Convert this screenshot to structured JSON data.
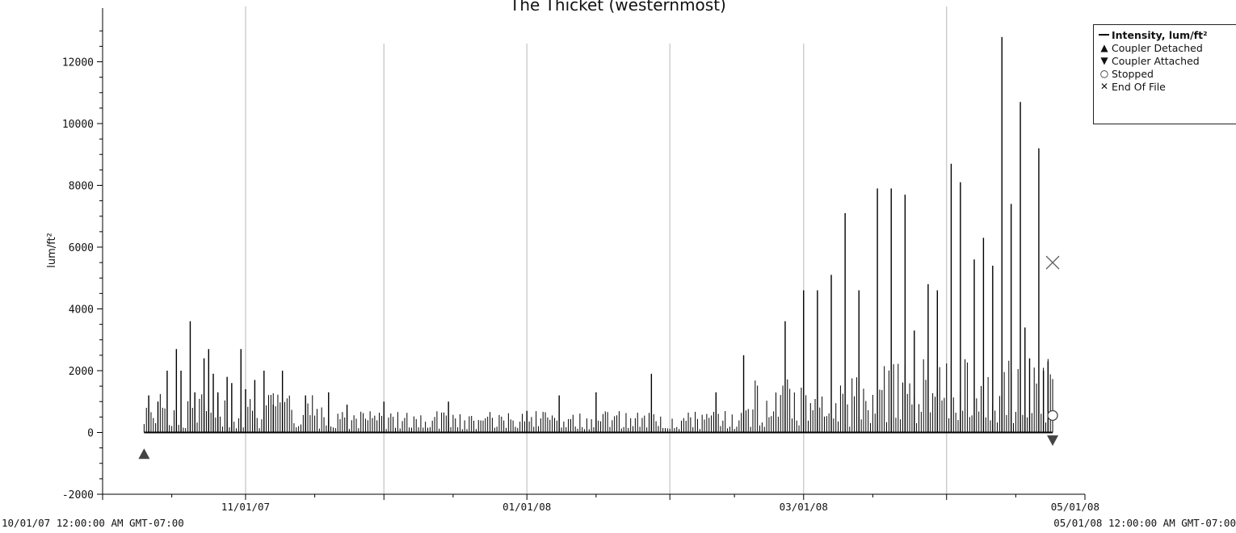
{
  "title": "The Thicket (westernmost)",
  "range_start_label": "10/01/07 12:00:00 AM GMT-07:00",
  "range_end_label": "05/01/08 12:00:00 AM GMT-07:00",
  "legend": {
    "intensity": "Intensity, lum/ft²",
    "coupler_detached": "Coupler Detached",
    "coupler_attached": "Coupler Attached",
    "stopped": "Stopped",
    "end_of_file": "End Of File"
  },
  "chart_data": {
    "type": "bar",
    "title": "The Thicket (westernmost)",
    "ylabel": "lum/ft²",
    "xlabel": "",
    "ylim": [
      -2000,
      14000
    ],
    "yticks": [
      -2000,
      0,
      2000,
      4000,
      6000,
      8000,
      10000,
      12000
    ],
    "x_axis_start": "2007-10-01",
    "x_axis_end": "2008-05-01",
    "x_major_ticks": [
      "11/01/07",
      "01/01/08",
      "03/01/08",
      "05/01/08"
    ],
    "grid": "vertical lines at month boundaries",
    "legend_position": "top-right",
    "series": [
      {
        "name": "Intensity, lum/ft²",
        "kind": "daily peak spikes",
        "color": "#000000",
        "x": [
          "2007-10-11",
          "2007-10-13",
          "2007-10-15",
          "2007-10-17",
          "2007-10-18",
          "2007-10-20",
          "2007-10-21",
          "2007-10-23",
          "2007-10-24",
          "2007-10-25",
          "2007-10-26",
          "2007-10-28",
          "2007-10-29",
          "2007-10-31",
          "2007-11-01",
          "2007-11-03",
          "2007-11-05",
          "2007-11-07",
          "2007-11-09",
          "2007-11-14",
          "2007-11-19",
          "2007-11-23",
          "2007-12-01",
          "2007-12-15",
          "2008-01-01",
          "2008-01-08",
          "2008-01-16",
          "2008-01-28",
          "2008-02-11",
          "2008-02-17",
          "2008-02-26",
          "2008-03-01",
          "2008-03-04",
          "2008-03-07",
          "2008-03-10",
          "2008-03-13",
          "2008-03-17",
          "2008-03-20",
          "2008-03-23",
          "2008-03-25",
          "2008-03-28",
          "2008-03-30",
          "2008-04-02",
          "2008-04-04",
          "2008-04-07",
          "2008-04-09",
          "2008-04-11",
          "2008-04-13",
          "2008-04-15",
          "2008-04-17",
          "2008-04-18",
          "2008-04-19",
          "2008-04-21",
          "2008-04-22",
          "2008-04-23"
        ],
        "values": [
          1200,
          1000,
          2000,
          2700,
          2000,
          3600,
          1300,
          2400,
          2700,
          1900,
          1300,
          1800,
          1600,
          2700,
          1400,
          1700,
          2000,
          900,
          2000,
          1200,
          1300,
          900,
          1000,
          1000,
          700,
          1200,
          1300,
          1900,
          1300,
          2500,
          3600,
          4600,
          4600,
          5100,
          7100,
          4600,
          7900,
          7900,
          7700,
          3300,
          4800,
          4600,
          8700,
          8100,
          5600,
          6300,
          5400,
          12800,
          7400,
          10700,
          3400,
          2400,
          9200,
          2000,
          2300
        ]
      },
      {
        "name": "Coupler Detached",
        "kind": "marker",
        "x": [
          "2007-10-10"
        ],
        "values": [
          -700
        ]
      },
      {
        "name": "Coupler Attached",
        "kind": "marker",
        "x": [
          "2008-04-24"
        ],
        "values": [
          -250
        ]
      },
      {
        "name": "Stopped",
        "kind": "marker",
        "x": [
          "2008-04-24"
        ],
        "values": [
          550
        ]
      },
      {
        "name": "End Of File",
        "kind": "marker",
        "x": [
          "2008-04-24"
        ],
        "values": [
          5500
        ]
      }
    ]
  }
}
